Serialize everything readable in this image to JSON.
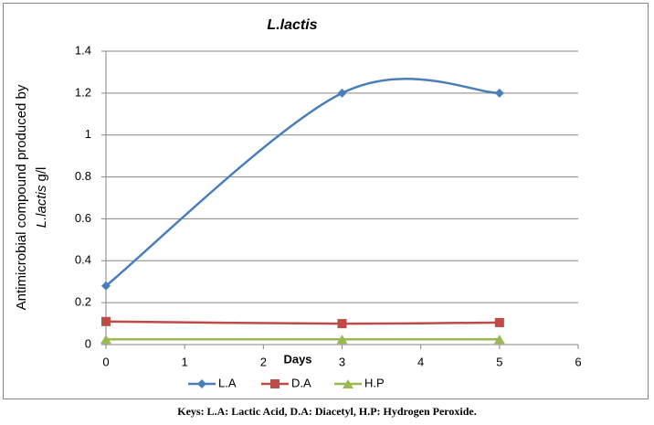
{
  "chart_data": {
    "type": "line",
    "title": "L.lactis",
    "xlabel": "Days",
    "ylabel": [
      "Antimicrobial compound produced by",
      "L.lactis",
      "g/l"
    ],
    "x": [
      0,
      3,
      5
    ],
    "series": [
      {
        "name": "L.A",
        "color": "#4a7ebb",
        "marker": "diamond",
        "values": [
          0.28,
          1.2,
          1.2
        ]
      },
      {
        "name": "D.A",
        "color": "#be4b48",
        "marker": "square",
        "values": [
          0.11,
          0.1,
          0.105
        ]
      },
      {
        "name": "H.P",
        "color": "#98b954",
        "marker": "triangle",
        "values": [
          0.025,
          0.025,
          0.025
        ]
      }
    ],
    "xlim": [
      0,
      6
    ],
    "xticks": [
      0,
      1,
      2,
      3,
      4,
      5,
      6
    ],
    "ylim": [
      0,
      1.4
    ],
    "yticks": [
      0,
      0.2,
      0.4,
      0.6,
      0.8,
      1,
      1.2,
      1.4
    ],
    "grid": true,
    "smooth": true,
    "legend": "bottom"
  },
  "caption": "Keys: L.A: Lactic Acid, D.A: Diacetyl, H.P: Hydrogen Peroxide."
}
